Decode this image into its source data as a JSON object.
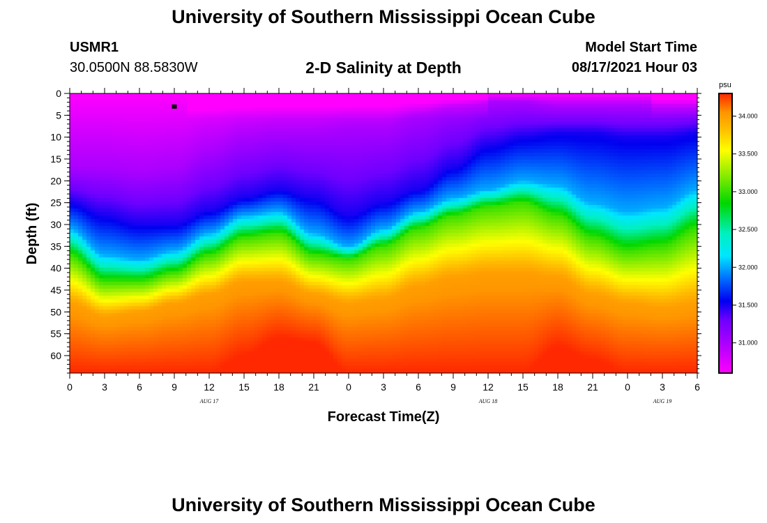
{
  "header": {
    "title": "University of Southern Mississippi Ocean Cube",
    "station_id": "USMR1",
    "station_location": "30.0500N  88.5830W",
    "plot_title": "2-D Salinity at Depth",
    "model_label": "Model Start Time",
    "model_time": "08/17/2021 Hour 03"
  },
  "footer": {
    "title": "University of Southern Mississippi Ocean Cube"
  },
  "chart_data": {
    "type": "heatmap",
    "title": "2-D Salinity at Depth",
    "xlabel": "Forecast Time(Z)",
    "ylabel": "Depth (ft)",
    "x_tick_labels": [
      "0",
      "3",
      "6",
      "9",
      "12",
      "15",
      "18",
      "21",
      "0",
      "3",
      "6",
      "9",
      "12",
      "15",
      "18",
      "21",
      "0",
      "3",
      "6"
    ],
    "x_range_hours": [
      0,
      54
    ],
    "day_labels": [
      {
        "label": "AUG 17",
        "hour": 12
      },
      {
        "label": "AUG 18",
        "hour": 36
      },
      {
        "label": "AUG 19",
        "hour": 51
      }
    ],
    "y_tick_labels": [
      "0",
      "5",
      "10",
      "15",
      "20",
      "25",
      "30",
      "35",
      "40",
      "45",
      "50",
      "55",
      "60"
    ],
    "y_range_ft": [
      0,
      64
    ],
    "y_inverted": true,
    "colorbar": {
      "unit": "psu",
      "range": [
        30.6,
        34.3
      ],
      "tick_labels": [
        "31.000",
        "31.500",
        "32.000",
        "32.500",
        "33.000",
        "33.500",
        "34.000"
      ],
      "tick_values": [
        31.0,
        31.5,
        32.0,
        32.5,
        33.0,
        33.5,
        34.0
      ]
    },
    "isoline_depths_ft": {
      "hours": [
        0,
        3,
        6,
        9,
        12,
        15,
        18,
        21,
        24,
        27,
        30,
        33,
        36,
        39,
        42,
        45,
        48,
        51,
        54
      ],
      "salinity_31_0": [
        17,
        17,
        18,
        17,
        13,
        10,
        9,
        9,
        8,
        8,
        5,
        3,
        2,
        2,
        3,
        3,
        3,
        3,
        3
      ],
      "salinity_31_5": [
        25,
        28,
        30,
        30,
        27,
        24,
        22,
        24,
        28,
        25,
        22,
        17,
        12,
        10,
        9,
        9,
        10,
        10,
        9
      ],
      "salinity_32_0": [
        31,
        37,
        38,
        36,
        32,
        28,
        27,
        32,
        35,
        31,
        27,
        24,
        22,
        20,
        21,
        25,
        27,
        26,
        22
      ],
      "salinity_33_0": [
        37,
        43,
        43,
        41,
        37,
        33,
        32,
        37,
        38,
        35,
        31,
        28,
        26,
        25,
        28,
        33,
        36,
        35,
        31
      ],
      "salinity_34_0": [
        48,
        51,
        50,
        48,
        46,
        43,
        43,
        46,
        48,
        47,
        44,
        42,
        41,
        41,
        42,
        46,
        48,
        49,
        48
      ],
      "salinity_34_3": [
        64,
        64,
        64,
        64,
        64,
        60,
        56,
        57,
        64,
        64,
        64,
        64,
        64,
        64,
        58,
        61,
        64,
        64,
        64
      ]
    },
    "marker": {
      "hour": 9,
      "depth_ft": 3
    }
  }
}
